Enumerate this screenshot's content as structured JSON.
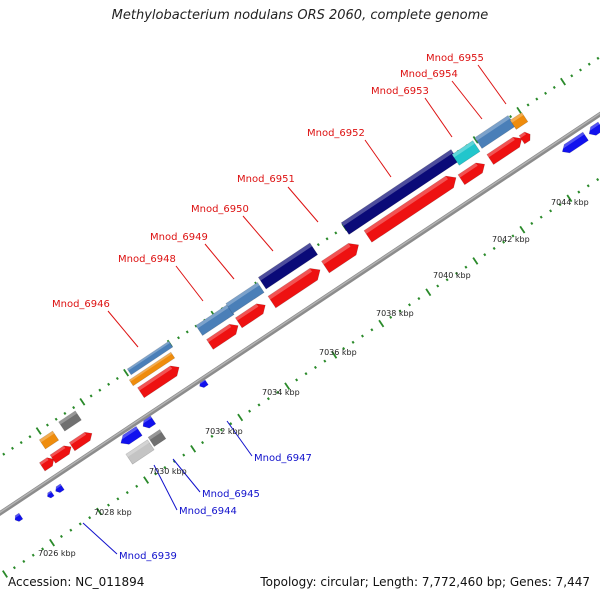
{
  "title": "Methylobacterium nodulans ORS 2060, complete genome",
  "footer": {
    "accession": "Accession: NC_011894",
    "summary": "Topology: circular; Length: 7,772,460 bp; Genes: 7,447"
  },
  "colors": {
    "cds": "#ee1111",
    "navy": "#0a0a78",
    "steelblue": "#4a7fb8",
    "orange": "#ef8c0c",
    "cyan": "#22c6cc",
    "darkgray": "#707070",
    "lightgray": "#c4c4c4",
    "blue": "#1111ee",
    "backbone": "#8c8c8c",
    "tick": "#2a8a2a",
    "label_top": "#dd1111",
    "label_bottom": "#1111cc"
  },
  "kbp_ticks": [
    "7026 kbp",
    "7028 kbp",
    "7030 kbp",
    "7032 kbp",
    "7034 kbp",
    "7036 kbp",
    "7038 kbp",
    "7040 kbp",
    "7042 kbp",
    "7044 kbp"
  ],
  "genes_top": [
    "Mnod_6946",
    "Mnod_6948",
    "Mnod_6949",
    "Mnod_6950",
    "Mnod_6951",
    "Mnod_6952",
    "Mnod_6953",
    "Mnod_6954",
    "Mnod_6955"
  ],
  "genes_bottom": [
    "Mnod_6947",
    "Mnod_6945",
    "Mnod_6944",
    "Mnod_6939"
  ]
}
